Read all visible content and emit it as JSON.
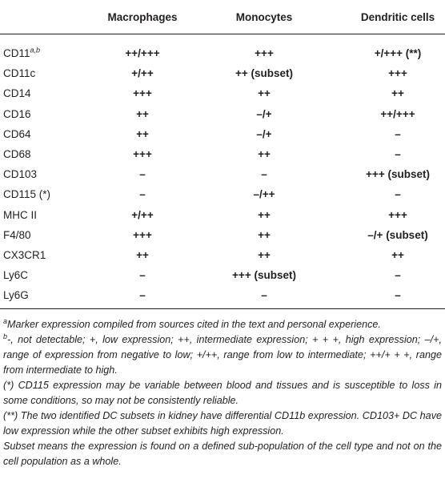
{
  "table": {
    "header": [
      "Macrophages",
      "Monocytes",
      "Dendritic cells"
    ],
    "rows": [
      {
        "marker": "CD11",
        "sup": "a,b",
        "values": [
          "++/+++",
          "+++",
          "+/+++ (**)"
        ]
      },
      {
        "marker": "CD11c",
        "values": [
          "+/++",
          "++ (subset)",
          "+++"
        ]
      },
      {
        "marker": "CD14",
        "values": [
          "+++",
          "++",
          "++"
        ]
      },
      {
        "marker": "CD16",
        "values": [
          "++",
          "–/+",
          "++/+++"
        ]
      },
      {
        "marker": "CD64",
        "values": [
          "++",
          "–/+",
          "–"
        ]
      },
      {
        "marker": "CD68",
        "values": [
          "+++",
          "++",
          "–"
        ]
      },
      {
        "marker": "CD103",
        "values": [
          "–",
          "–",
          "+++ (subset)"
        ]
      },
      {
        "marker": "CD115 (*)",
        "values": [
          "–",
          "–/++",
          "–"
        ]
      },
      {
        "marker": "MHC II",
        "values": [
          "+/++",
          "++",
          "+++"
        ]
      },
      {
        "marker": "F4/80",
        "values": [
          "+++",
          "++",
          "–/+ (subset)"
        ]
      },
      {
        "marker": "CX3CR1",
        "values": [
          "++",
          "++",
          "++"
        ]
      },
      {
        "marker": "Ly6C",
        "values": [
          "–",
          "+++ (subset)",
          "–"
        ]
      },
      {
        "marker": "Ly6G",
        "values": [
          "–",
          "–",
          "–"
        ]
      }
    ]
  },
  "footnotes": [
    {
      "mark": "a",
      "text": "Marker expression compiled from sources cited in the text and personal experience."
    },
    {
      "mark": "b",
      "text": "-, not detectable; +, low expression; ++, intermediate expression; + + +, high expression; –/+, range of expression from negative to low; +/++, range from low to intermediate; ++/+ + +, range from intermediate to high."
    },
    {
      "text": "(*) CD115 expression may be variable between blood and tissues and is susceptible to loss in some conditions, so may not be consistently reliable."
    },
    {
      "text": "(**) The two identified DC subsets in kidney have differential CD11b expression. CD103+ DC have low expression while the other subset exhibits high expression."
    },
    {
      "text": "Subset means the expression is found on a defined sub-population of the cell type and not on the cell population as a whole."
    }
  ]
}
